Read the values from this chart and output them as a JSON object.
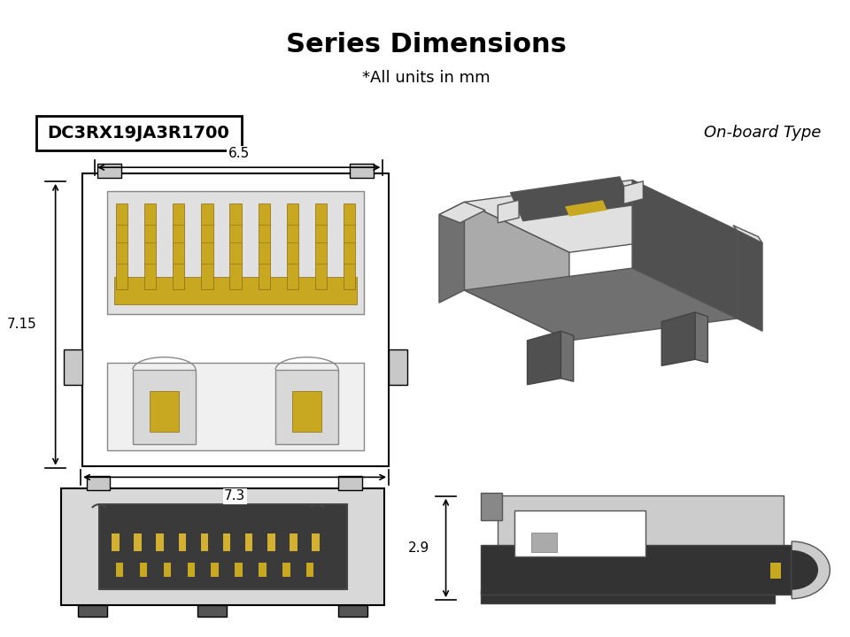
{
  "title": "Series Dimensions",
  "subtitle": "*All units in mm",
  "part_number": "DC3RX19JA3R1700",
  "type_label": "On-board Type",
  "bg_color": "#ffffff",
  "title_fontsize": 22,
  "subtitle_fontsize": 13,
  "part_fontsize": 14,
  "type_fontsize": 13,
  "dim_65_label": "6.5",
  "dim_715_label": "7.15",
  "dim_73_label": "7.3",
  "dim_29_label": "2.9"
}
